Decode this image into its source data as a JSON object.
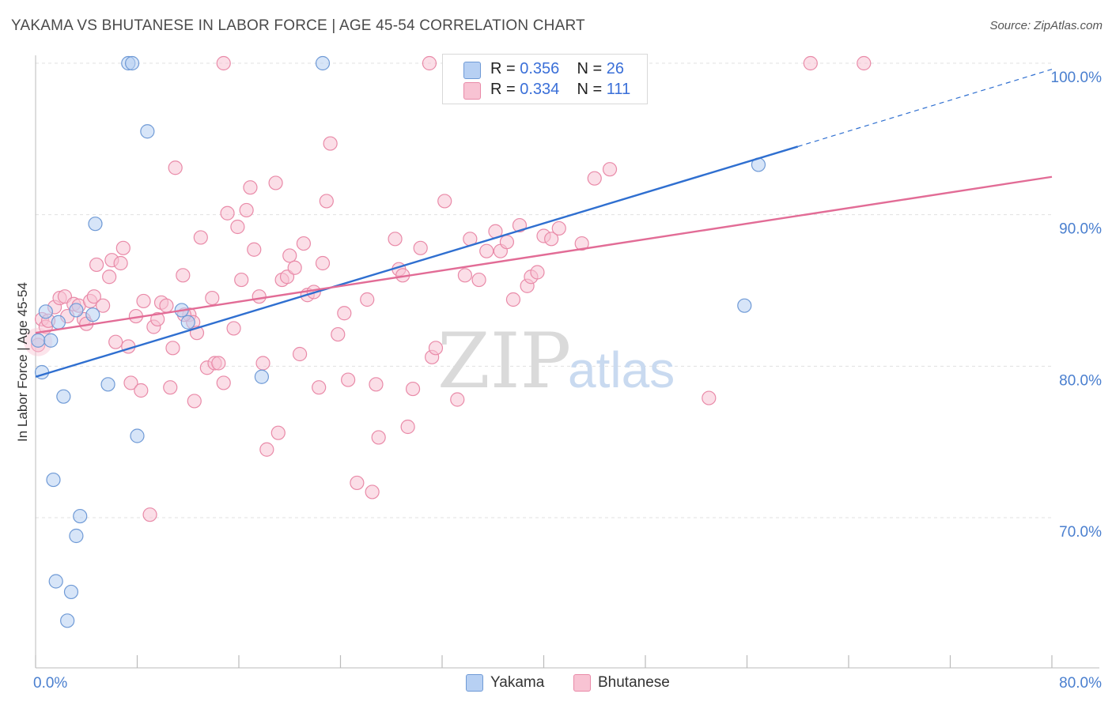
{
  "header": {
    "title": "YAKAMA VS BHUTANESE IN LABOR FORCE | AGE 45-54 CORRELATION CHART",
    "source": "Source: ZipAtlas.com"
  },
  "colors": {
    "yakama_fill": "#b7d0f3",
    "yakama_stroke": "#6f9ad6",
    "yakama_line": "#2f6fd0",
    "bhutanese_fill": "#f8c3d3",
    "bhutanese_stroke": "#e98aa8",
    "bhutanese_line": "#e26c96",
    "axis_text": "#4a7fcf",
    "grid": "#e0e0e0"
  },
  "legend": {
    "rows": [
      {
        "r_label": "R = ",
        "r_value": "0.356",
        "n_label": "N = ",
        "n_value": "26"
      },
      {
        "r_label": "R = ",
        "r_value": "0.334",
        "n_label": "N = ",
        "n_value": "111"
      }
    ]
  },
  "bottom_legend": {
    "items": [
      {
        "label": "Yakama"
      },
      {
        "label": "Bhutanese"
      }
    ]
  },
  "watermark": {
    "zip": "ZIP",
    "atlas": "atlas"
  },
  "chart_data": {
    "type": "scatter",
    "title": "YAKAMA VS BHUTANESE IN LABOR FORCE | AGE 45-54 CORRELATION CHART",
    "xlabel": "",
    "ylabel": "In Labor Force | Age 45-54",
    "xlim": [
      0,
      80
    ],
    "ylim": [
      60.5,
      101.5
    ],
    "x_tick_labels": [
      {
        "value": 0,
        "label": "0.0%"
      },
      {
        "value": 80,
        "label": "80.0%"
      }
    ],
    "y_tick_labels": [
      {
        "value": 100,
        "label": "100.0%"
      },
      {
        "value": 90,
        "label": "90.0%"
      },
      {
        "value": 80,
        "label": "80.0%"
      },
      {
        "value": 70,
        "label": "70.0%"
      }
    ],
    "series": [
      {
        "name": "Yakama",
        "R": 0.356,
        "N": 26,
        "trend": {
          "x0": 0,
          "y0": 79.3,
          "x1": 60,
          "y1": 94.5,
          "dashed_to_x": 80,
          "dashed_to_y": 99.6
        },
        "points": [
          [
            0.2,
            81.7
          ],
          [
            0.5,
            79.6
          ],
          [
            0.8,
            83.6
          ],
          [
            1.2,
            81.7
          ],
          [
            1.4,
            72.5
          ],
          [
            1.6,
            65.8
          ],
          [
            1.8,
            82.9
          ],
          [
            2.2,
            78.0
          ],
          [
            2.8,
            65.1
          ],
          [
            2.5,
            63.2
          ],
          [
            3.2,
            68.8
          ],
          [
            3.5,
            70.1
          ],
          [
            3.2,
            83.7
          ],
          [
            4.5,
            83.4
          ],
          [
            4.7,
            89.4
          ],
          [
            5.7,
            78.8
          ],
          [
            7.3,
            100.0
          ],
          [
            7.6,
            100.0
          ],
          [
            8.0,
            75.4
          ],
          [
            8.8,
            95.5
          ],
          [
            11.5,
            83.7
          ],
          [
            12.0,
            82.9
          ],
          [
            17.8,
            79.3
          ],
          [
            22.6,
            100.0
          ],
          [
            55.8,
            84.0
          ],
          [
            56.9,
            93.3
          ]
        ]
      },
      {
        "name": "Bhutanese",
        "R": 0.334,
        "N": 111,
        "trend": {
          "x0": 0,
          "y0": 82.2,
          "x1": 80,
          "y1": 92.5
        },
        "points": [
          [
            0.2,
            81.4
          ],
          [
            0.5,
            83.1
          ],
          [
            0.8,
            82.6
          ],
          [
            1.0,
            83.0
          ],
          [
            1.5,
            83.9
          ],
          [
            1.9,
            84.5
          ],
          [
            2.3,
            84.6
          ],
          [
            2.5,
            83.3
          ],
          [
            3.0,
            84.1
          ],
          [
            3.4,
            84.0
          ],
          [
            3.8,
            83.1
          ],
          [
            4.0,
            82.8
          ],
          [
            4.3,
            84.3
          ],
          [
            4.6,
            84.6
          ],
          [
            4.8,
            86.7
          ],
          [
            5.3,
            84.0
          ],
          [
            5.8,
            85.9
          ],
          [
            6.0,
            87.0
          ],
          [
            6.3,
            81.6
          ],
          [
            6.7,
            86.8
          ],
          [
            6.9,
            87.8
          ],
          [
            7.3,
            81.3
          ],
          [
            7.5,
            78.9
          ],
          [
            7.9,
            83.3
          ],
          [
            8.3,
            78.4
          ],
          [
            8.5,
            84.3
          ],
          [
            9.0,
            70.2
          ],
          [
            9.3,
            82.6
          ],
          [
            9.6,
            83.1
          ],
          [
            9.9,
            84.2
          ],
          [
            10.3,
            84.0
          ],
          [
            10.6,
            78.6
          ],
          [
            10.8,
            81.2
          ],
          [
            11.0,
            93.1
          ],
          [
            11.6,
            86.0
          ],
          [
            12.1,
            83.4
          ],
          [
            12.4,
            82.9
          ],
          [
            12.5,
            77.7
          ],
          [
            12.7,
            82.2
          ],
          [
            13.0,
            88.5
          ],
          [
            13.5,
            79.9
          ],
          [
            13.9,
            84.5
          ],
          [
            14.1,
            80.2
          ],
          [
            14.4,
            80.2
          ],
          [
            14.8,
            78.9
          ],
          [
            15.1,
            90.1
          ],
          [
            15.6,
            82.5
          ],
          [
            15.9,
            89.2
          ],
          [
            16.2,
            85.7
          ],
          [
            16.6,
            90.3
          ],
          [
            16.9,
            91.8
          ],
          [
            17.2,
            87.7
          ],
          [
            17.6,
            84.6
          ],
          [
            17.9,
            80.2
          ],
          [
            18.2,
            74.5
          ],
          [
            18.9,
            92.1
          ],
          [
            19.1,
            75.6
          ],
          [
            19.4,
            85.7
          ],
          [
            19.8,
            85.9
          ],
          [
            20.0,
            87.3
          ],
          [
            20.4,
            86.5
          ],
          [
            20.8,
            80.8
          ],
          [
            21.1,
            88.1
          ],
          [
            21.4,
            84.7
          ],
          [
            21.9,
            84.9
          ],
          [
            22.3,
            78.6
          ],
          [
            22.6,
            86.8
          ],
          [
            22.9,
            90.9
          ],
          [
            23.2,
            94.7
          ],
          [
            23.8,
            82.1
          ],
          [
            24.3,
            83.5
          ],
          [
            24.6,
            79.1
          ],
          [
            25.3,
            72.3
          ],
          [
            26.1,
            84.4
          ],
          [
            26.5,
            71.7
          ],
          [
            26.8,
            78.8
          ],
          [
            27.0,
            75.3
          ],
          [
            28.6,
            86.4
          ],
          [
            28.9,
            86.0
          ],
          [
            29.3,
            76.0
          ],
          [
            29.7,
            78.5
          ],
          [
            30.3,
            87.8
          ],
          [
            31.2,
            80.6
          ],
          [
            31.5,
            81.2
          ],
          [
            32.2,
            90.9
          ],
          [
            33.2,
            77.8
          ],
          [
            33.8,
            86.0
          ],
          [
            34.2,
            88.4
          ],
          [
            34.9,
            85.7
          ],
          [
            35.5,
            87.6
          ],
          [
            36.2,
            88.9
          ],
          [
            36.6,
            87.6
          ],
          [
            37.1,
            88.2
          ],
          [
            37.6,
            84.4
          ],
          [
            38.1,
            89.3
          ],
          [
            38.7,
            85.3
          ],
          [
            39.0,
            85.9
          ],
          [
            39.5,
            86.2
          ],
          [
            40.0,
            88.6
          ],
          [
            40.6,
            88.4
          ],
          [
            41.2,
            89.1
          ],
          [
            43.0,
            88.1
          ],
          [
            44.0,
            92.4
          ],
          [
            45.2,
            93.0
          ],
          [
            53.0,
            77.9
          ],
          [
            61.0,
            100.0
          ],
          [
            65.2,
            100.0
          ],
          [
            31.0,
            100.0
          ],
          [
            14.8,
            100.0
          ],
          [
            28.3,
            88.4
          ],
          [
            11.7,
            83.4
          ]
        ]
      }
    ]
  }
}
